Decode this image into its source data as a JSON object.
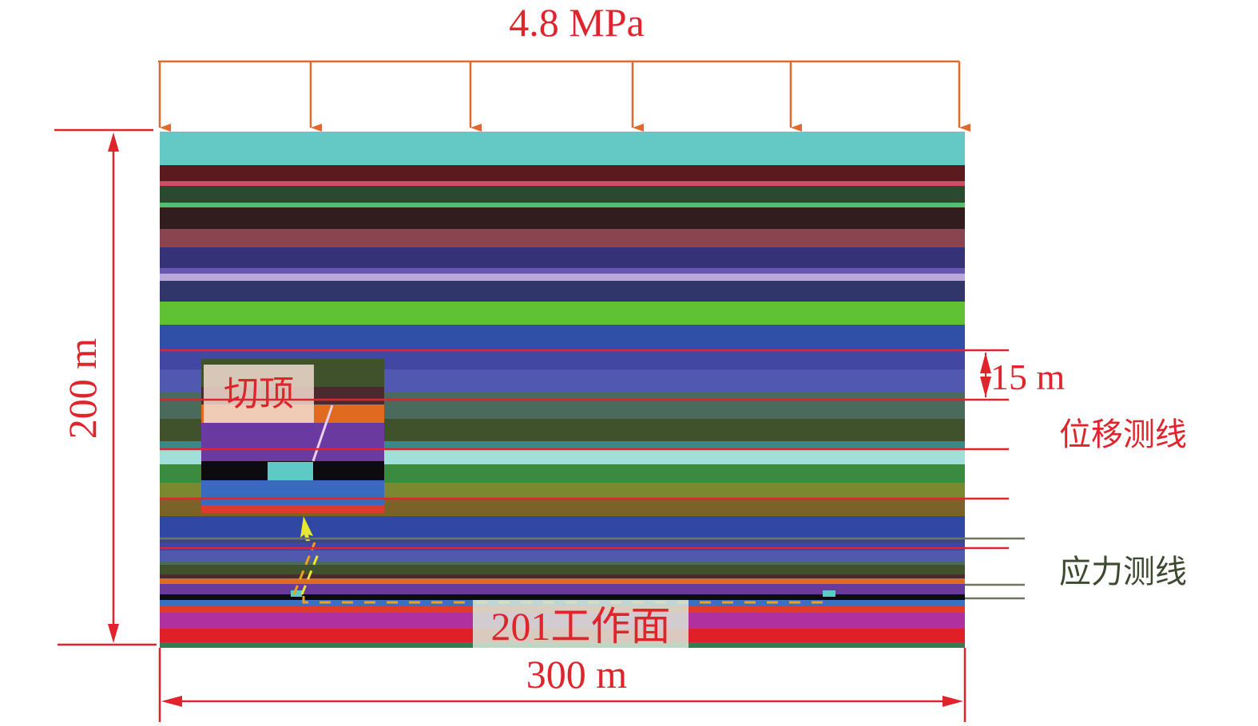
{
  "load_label": "4.8 MPa",
  "height_label": "200 m",
  "width_label": "300 m",
  "spacing_label": "15 m",
  "displacement_lines_label": "位移测线",
  "stress_lines_label": "应力测线",
  "roof_cutting_label": "切顶",
  "working_face_label": "201工作面",
  "colors": {
    "load_arrows": "#e0692f",
    "dimension": "#e0242c",
    "displacement_lines": "#e0242c",
    "stress_lines": "#6e7560",
    "working_face_outline": "#f0a020",
    "roof_arrow": "#e8e830"
  },
  "strata_colors": [
    "#64c8c4",
    "#5a1a1e",
    "#d44a6a",
    "#2a4a30",
    "#50c070",
    "#311c1e",
    "#8a4450",
    "#363278",
    "#6858b0",
    "#baa8d8",
    "#30366a",
    "#5ec234",
    "#3050a8",
    "#4446a4",
    "#5058b0",
    "#4a6a5c",
    "#40522c",
    "#3a8888",
    "#a0e0d8",
    "#3a8a40",
    "#7a8830",
    "#7a6228",
    "#3048a4",
    "#404a60",
    "#4444a0",
    "#5058b0",
    "#4a6a5c",
    "#40522c",
    "#4a2a2a",
    "#e06a20",
    "#6a3a9a",
    "#0c0c10",
    "#3a70c0",
    "#e03a2a",
    "#b030a0",
    "#e02028",
    "#3a7a50"
  ]
}
